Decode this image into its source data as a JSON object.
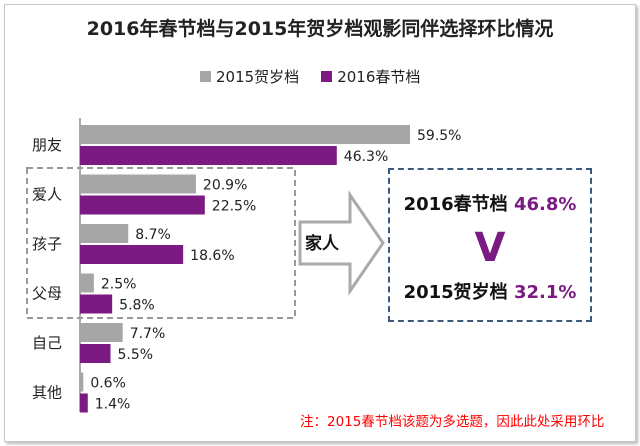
{
  "title": "2016年春节档与2015年贺岁档观影同伴选择环比情况",
  "legend": [
    {
      "label": "2015贺岁档",
      "color": "#a6a6a6"
    },
    {
      "label": "2016春节档",
      "color": "#7a1a82"
    }
  ],
  "chart_data": {
    "type": "bar",
    "orientation": "horizontal",
    "categories": [
      "朋友",
      "爱人",
      "孩子",
      "父母",
      "自己",
      "其他"
    ],
    "series": [
      {
        "name": "2015贺岁档",
        "values": [
          59.5,
          20.9,
          8.7,
          2.5,
          7.7,
          0.6
        ],
        "color": "#a6a6a6"
      },
      {
        "name": "2016春节档",
        "values": [
          46.3,
          22.5,
          18.6,
          5.8,
          5.5,
          1.4
        ],
        "color": "#7a1a82"
      }
    ],
    "value_labels": [
      [
        "59.5%",
        "20.9%",
        "8.7%",
        "2.5%",
        "7.7%",
        "0.6%"
      ],
      [
        "46.3%",
        "22.5%",
        "18.6%",
        "5.8%",
        "5.5%",
        "1.4%"
      ]
    ],
    "xlim": [
      0,
      70
    ],
    "unit": "%"
  },
  "family_group": {
    "arrow_label": "家人",
    "row1_label": "2016春节档",
    "row1_value": "46.8%",
    "vs_symbol": "V",
    "row2_label": "2015贺岁档",
    "row2_value": "32.1%"
  },
  "note": "注：2015春节档该题为多选题，因此此处采用环比"
}
